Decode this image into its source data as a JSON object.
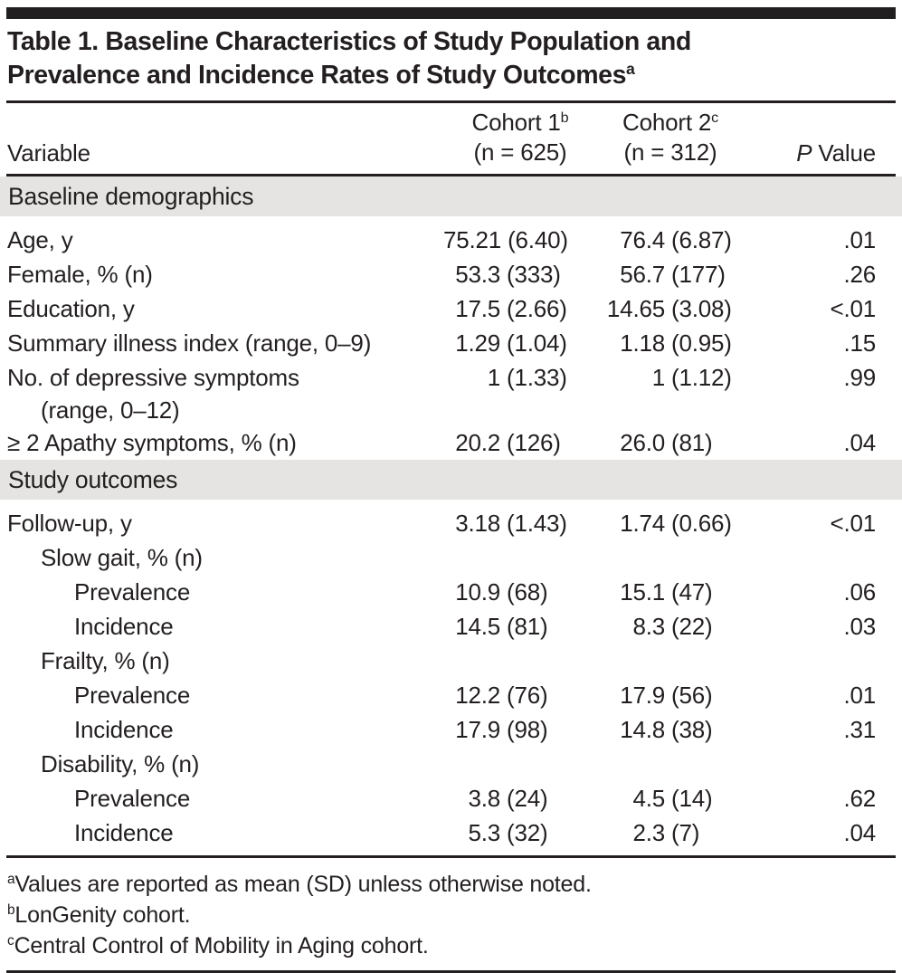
{
  "table": {
    "title_line1": "Table 1. Baseline Characteristics of Study Population and",
    "title_line2": "Prevalence and Incidence Rates of Study Outcomes",
    "title_sup": "a",
    "header": {
      "variable": "Variable",
      "cohort1_name": "Cohort 1",
      "cohort1_sup": "b",
      "cohort1_n": "(n = 625)",
      "cohort2_name": "Cohort 2",
      "cohort2_sup": "c",
      "cohort2_n": "(n = 312)",
      "p_prefix": "P",
      "p_suffix": " Value"
    },
    "rows": [
      {
        "type": "section",
        "label": "Baseline demographics"
      },
      {
        "type": "data",
        "indent": 0,
        "label": "Age, y",
        "c1": "75.21 (6.40)",
        "c2": "76.4 (6.87)",
        "p": ".01"
      },
      {
        "type": "data",
        "indent": 0,
        "label": "Female, % (n)",
        "c1": "53.3 (333)",
        "c2": "56.7 (177)",
        "p": ".26"
      },
      {
        "type": "data",
        "indent": 0,
        "label": "Education, y",
        "c1": "17.5 (2.66)",
        "c2": "14.65 (3.08)",
        "p": "<.01"
      },
      {
        "type": "data",
        "indent": 0,
        "label": "Summary illness index (range, 0–9)",
        "c1": "1.29 (1.04)",
        "c2": "1.18 (0.95)",
        "p": ".15"
      },
      {
        "type": "data",
        "indent": 0,
        "label": "No. of depressive symptoms",
        "label2": "(range, 0–12)",
        "c1": "1 (1.33)",
        "c2": "1 (1.12)",
        "p": ".99"
      },
      {
        "type": "data",
        "indent": 0,
        "label": "≥ 2 Apathy symptoms, % (n)",
        "c1": "20.2 (126)",
        "c2": "26.0 (81)",
        "p": ".04"
      },
      {
        "type": "section",
        "label": "Study outcomes"
      },
      {
        "type": "data",
        "indent": 0,
        "label": "Follow-up, y",
        "c1": "3.18 (1.43)",
        "c2": "1.74 (0.66)",
        "p": "<.01"
      },
      {
        "type": "data",
        "indent": 1,
        "label": "Slow gait, % (n)",
        "c1": "",
        "c2": "",
        "p": ""
      },
      {
        "type": "data",
        "indent": 2,
        "label": "Prevalence",
        "c1": "10.9 (68)",
        "c2": "15.1 (47)",
        "p": ".06"
      },
      {
        "type": "data",
        "indent": 2,
        "label": "Incidence",
        "c1": "14.5 (81)",
        "c2": "8.3 (22)",
        "p": ".03"
      },
      {
        "type": "data",
        "indent": 1,
        "label": "Frailty, % (n)",
        "c1": "",
        "c2": "",
        "p": ""
      },
      {
        "type": "data",
        "indent": 2,
        "label": "Prevalence",
        "c1": "12.2 (76)",
        "c2": "17.9 (56)",
        "p": ".01"
      },
      {
        "type": "data",
        "indent": 2,
        "label": "Incidence",
        "c1": "17.9 (98)",
        "c2": "14.8 (38)",
        "p": ".31"
      },
      {
        "type": "data",
        "indent": 1,
        "label": "Disability, % (n)",
        "c1": "",
        "c2": "",
        "p": ""
      },
      {
        "type": "data",
        "indent": 2,
        "label": "Prevalence",
        "c1": "3.8 (24)",
        "c2": "4.5 (14)",
        "p": ".62"
      },
      {
        "type": "data",
        "indent": 2,
        "label": "Incidence",
        "c1": "5.3 (32)",
        "c2": "2.3 (7)",
        "p": ".04"
      }
    ],
    "footnotes": [
      {
        "marker": "a",
        "text": "Values are reported as mean (SD) unless otherwise noted."
      },
      {
        "marker": "b",
        "text": "LonGenity cohort."
      },
      {
        "marker": "c",
        "text": "Central Control of Mobility in Aging cohort."
      }
    ],
    "colors": {
      "text": "#231f20",
      "section_band": "#e5e4e2",
      "rule": "#231f20"
    }
  }
}
